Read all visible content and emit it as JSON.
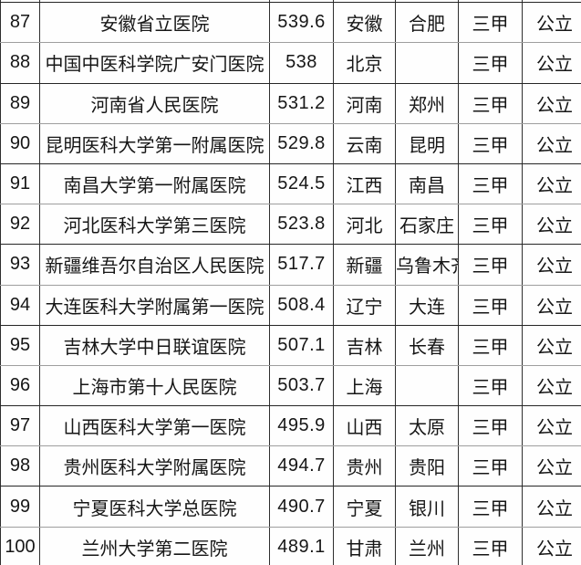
{
  "table": {
    "description_labels": {
      "grade_common": "三甲",
      "type_common": "公立"
    },
    "rows": [
      {
        "rank": "87",
        "name": "安徽省立医院",
        "score": "539.6",
        "province": "安徽",
        "city": "合肥",
        "grade": "三甲",
        "type": "公立"
      },
      {
        "rank": "88",
        "name": "中国中医科学院广安门医院",
        "score": "538",
        "province": "北京",
        "city": "",
        "grade": "三甲",
        "type": "公立"
      },
      {
        "rank": "89",
        "name": "河南省人民医院",
        "score": "531.2",
        "province": "河南",
        "city": "郑州",
        "grade": "三甲",
        "type": "公立"
      },
      {
        "rank": "90",
        "name": "昆明医科大学第一附属医院",
        "score": "529.8",
        "province": "云南",
        "city": "昆明",
        "grade": "三甲",
        "type": "公立"
      },
      {
        "rank": "91",
        "name": "南昌大学第一附属医院",
        "score": "524.5",
        "province": "江西",
        "city": "南昌",
        "grade": "三甲",
        "type": "公立"
      },
      {
        "rank": "92",
        "name": "河北医科大学第三医院",
        "score": "523.8",
        "province": "河北",
        "city": "石家庄",
        "grade": "三甲",
        "type": "公立"
      },
      {
        "rank": "93",
        "name": "新疆维吾尔自治区人民医院",
        "score": "517.7",
        "province": "新疆",
        "city": "乌鲁木齐",
        "grade": "三甲",
        "type": "公立"
      },
      {
        "rank": "94",
        "name": "大连医科大学附属第一医院",
        "score": "508.4",
        "province": "辽宁",
        "city": "大连",
        "grade": "三甲",
        "type": "公立"
      },
      {
        "rank": "95",
        "name": "吉林大学中日联谊医院",
        "score": "507.1",
        "province": "吉林",
        "city": "长春",
        "grade": "三甲",
        "type": "公立"
      },
      {
        "rank": "96",
        "name": "上海市第十人民医院",
        "score": "503.7",
        "province": "上海",
        "city": "",
        "grade": "三甲",
        "type": "公立"
      },
      {
        "rank": "97",
        "name": "山西医科大学第一医院",
        "score": "495.9",
        "province": "山西",
        "city": "太原",
        "grade": "三甲",
        "type": "公立"
      },
      {
        "rank": "98",
        "name": "贵州医科大学附属医院",
        "score": "494.7",
        "province": "贵州",
        "city": "贵阳",
        "grade": "三甲",
        "type": "公立"
      },
      {
        "rank": "99",
        "name": "宁夏医科大学总医院",
        "score": "490.7",
        "province": "宁夏",
        "city": "银川",
        "grade": "三甲",
        "type": "公立"
      },
      {
        "rank": "100",
        "name": "兰州大学第二医院",
        "score": "489.1",
        "province": "甘肃",
        "city": "兰州",
        "grade": "三甲",
        "type": "公立"
      }
    ]
  }
}
